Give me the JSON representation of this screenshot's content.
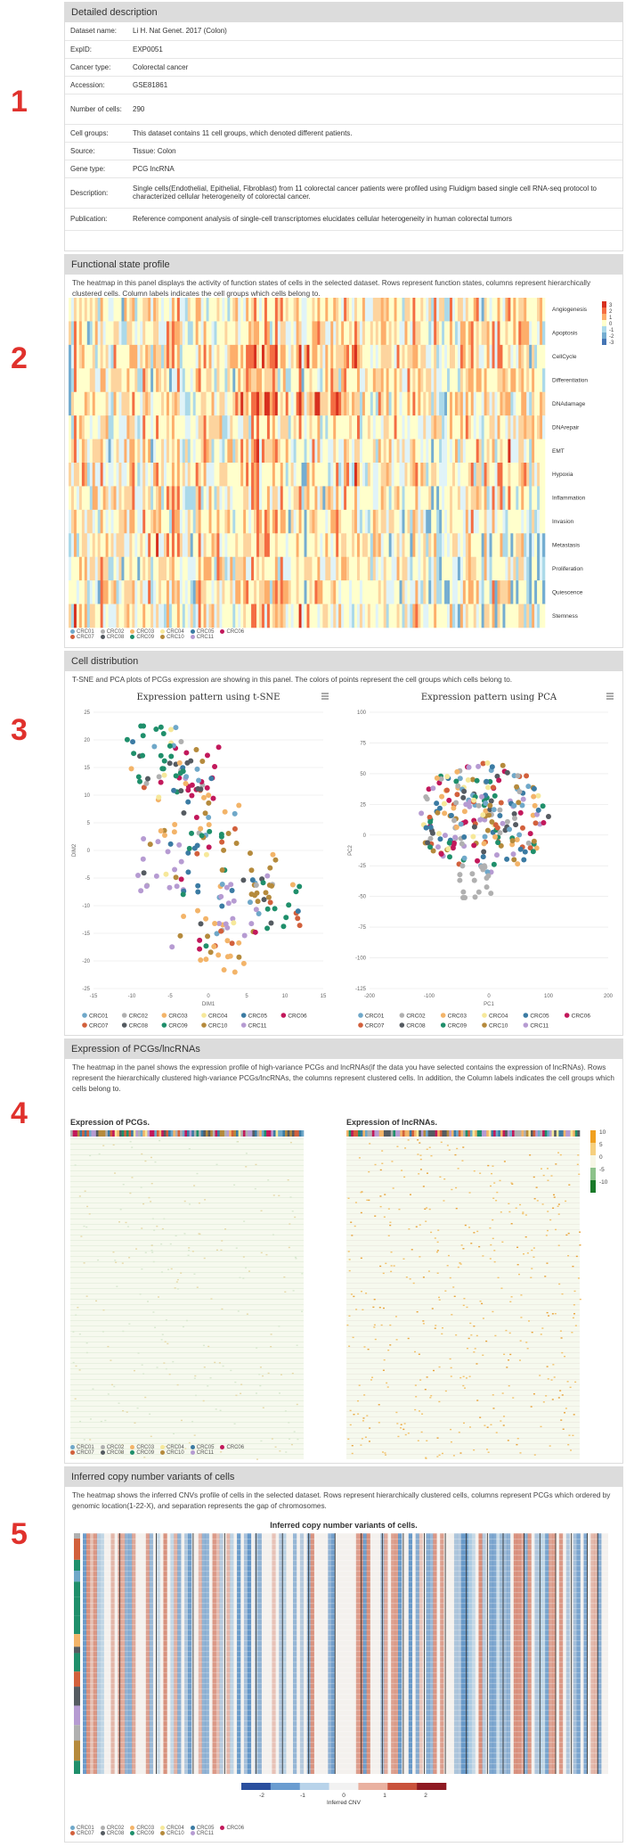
{
  "section_numbers": [
    "1",
    "2",
    "3",
    "4",
    "5"
  ],
  "description": {
    "title": "Detailed description",
    "rows": [
      {
        "key": "Dataset name:",
        "value": "Li H. Nat Genet. 2017 (Colon)"
      },
      {
        "key": "ExpID:",
        "value": "EXP0051"
      },
      {
        "key": "Cancer type:",
        "value": "Colorectal cancer"
      },
      {
        "key": "Accession:",
        "value": "GSE81861",
        "link": true
      },
      {
        "key": "Number of cells:",
        "value": "290"
      },
      {
        "key": "Cell groups:",
        "value": "This dataset contains 11 cell groups, which denoted different patients."
      },
      {
        "key": "Source:",
        "value": "Tissue: Colon"
      },
      {
        "key": "Gene type:",
        "value": "PCG lncRNA"
      },
      {
        "key": "Description:",
        "value": "Single cells(Endothelial, Epithelial, Fibroblast) from 11 colorectal cancer patients were profiled using Fluidigm based single cell RNA-seq protocol to characterized cellular heterogeneity of colorectal cancer."
      },
      {
        "key": "Publication:",
        "value": "Reference component analysis of single-cell transcriptomes elucidates cellular heterogeneity in human colorectal tumors",
        "link": true
      }
    ]
  },
  "functional": {
    "title": "Functional state profile",
    "text": "The heatmap in this panel displays the activity of function states of cells in the selected dataset. Rows represent function states, columns represent hierarchically clustered cells. Column labels indicates the cell groups which cells belong to.",
    "states": [
      "Angiogenesis",
      "Apoptosis",
      "CellCycle",
      "Differentiation",
      "DNAdamage",
      "DNArepair",
      "EMT",
      "Hypoxia",
      "Inflammation",
      "Invasion",
      "Metastasis",
      "Proliferation",
      "Quiescence",
      "Stemness"
    ],
    "scale": [
      "3",
      "2",
      "1",
      "0",
      "-1",
      "-2",
      "-3"
    ]
  },
  "groups": [
    {
      "name": "CRC01",
      "color": "#6fa8c9"
    },
    {
      "name": "CRC02",
      "color": "#b0b0b0"
    },
    {
      "name": "CRC03",
      "color": "#f3b469"
    },
    {
      "name": "CRC04",
      "color": "#f6e89a"
    },
    {
      "name": "CRC05",
      "color": "#3b7ba3"
    },
    {
      "name": "CRC06",
      "color": "#c2185b"
    },
    {
      "name": "CRC07",
      "color": "#d2603c"
    },
    {
      "name": "CRC08",
      "color": "#555b61"
    },
    {
      "name": "CRC09",
      "color": "#1f8f6b"
    },
    {
      "name": "CRC10",
      "color": "#b58a3c"
    },
    {
      "name": "CRC11",
      "color": "#b69bd2"
    }
  ],
  "cell_distribution": {
    "title": "Cell distribution",
    "text": "T-SNE and PCA plots of PCGs expression are showing in this panel. The colors of points represent the cell groups which cells belong to.",
    "tsne": {
      "title": "Expression pattern using t-SNE",
      "xlabel": "DIM1",
      "ylabel": "DIM2",
      "xticks": [
        "-15",
        "-10",
        "-5",
        "0",
        "5",
        "10",
        "15"
      ],
      "yticks": [
        "25",
        "20",
        "15",
        "10",
        "5",
        "0",
        "-5",
        "-10",
        "-15",
        "-20",
        "-25"
      ]
    },
    "pca": {
      "title": "Expression pattern using PCA",
      "xlabel": "PC1",
      "ylabel": "PC2",
      "xticks": [
        "-200",
        "-100",
        "0",
        "100",
        "200"
      ],
      "yticks": [
        "100",
        "75",
        "50",
        "25",
        "0",
        "-25",
        "-50",
        "-75",
        "-100",
        "-125"
      ]
    }
  },
  "expression": {
    "title": "Expression of PCGs/lncRNAs",
    "text": "The heatmap in the panel shows the expression profile of high-variance PCGs and lncRNAs(if the data you have selected contains the expression of lncRNAs). Rows represent the hierarchically clustered high-variance PCGs/lncRNAs, the columns represent clustered cells. In addition, the Column labels indicates the cell groups which cells belong to.",
    "pcg_title": "Expression of PCGs.",
    "lnc_title": "Expression of lncRNAs.",
    "scale": [
      "10",
      "5",
      "0",
      "-5",
      "-10"
    ]
  },
  "cnv": {
    "title": "Inferred copy number variants of cells",
    "text": "The heatmap shows the inferred CNVs profile of cells in the selected dataset. Rows represent hierarchically clustered cells, columns represent PCGs which ordered by genomic location(1-22-X), and separation represents the gap of chromosomes.",
    "heatmap_title": "Inferred copy number variants of cells.",
    "colorbar_label": "Inferred CNV",
    "colorbar_ticks": [
      "-2",
      "-1",
      "0",
      "1",
      "2"
    ]
  }
}
